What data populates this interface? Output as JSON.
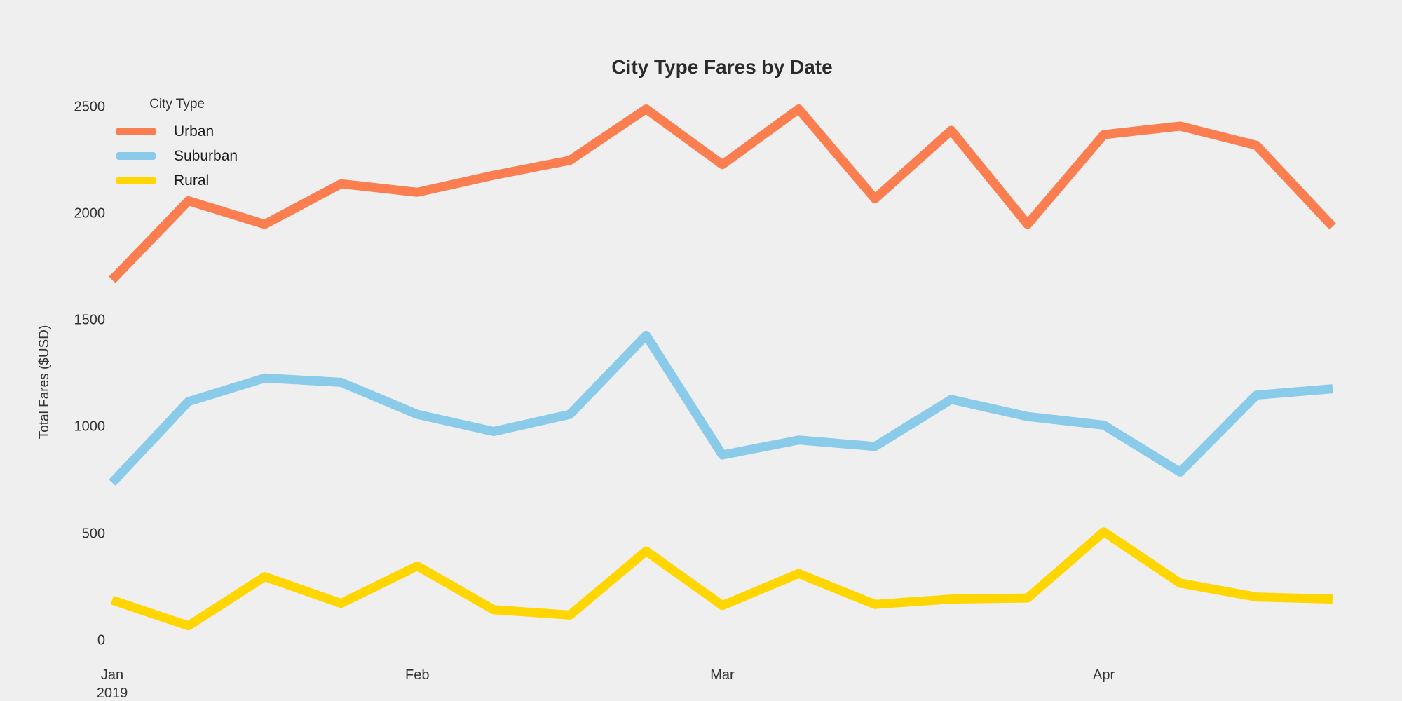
{
  "figure": {
    "background_color": "#EFEFEF",
    "text_color": "#333333"
  },
  "chart_data": {
    "type": "line",
    "title": "City Type Fares by Date",
    "xlabel": "",
    "ylabel": "Total Fares ($USD)",
    "legend_title": "City Type",
    "legend_position": "upper-left inside",
    "grid": false,
    "ylim": [
      0,
      2500
    ],
    "x_unit": "weekly dates, 2019",
    "x": [
      "2019-01-06",
      "2019-01-13",
      "2019-01-20",
      "2019-01-27",
      "2019-02-03",
      "2019-02-10",
      "2019-02-17",
      "2019-02-24",
      "2019-03-03",
      "2019-03-10",
      "2019-03-17",
      "2019-03-24",
      "2019-03-31",
      "2019-04-07",
      "2019-04-14",
      "2019-04-21",
      "2019-04-28"
    ],
    "series": [
      {
        "name": "Urban",
        "color": "#FA7E50",
        "values": [
          1690,
          2060,
          1950,
          2140,
          2100,
          2180,
          2250,
          2490,
          2230,
          2490,
          2070,
          2390,
          1950,
          2370,
          2410,
          2320,
          1940
        ]
      },
      {
        "name": "Suburban",
        "color": "#8ACBE9",
        "values": [
          740,
          1120,
          1230,
          1210,
          1060,
          980,
          1060,
          1430,
          870,
          940,
          910,
          1130,
          1050,
          1010,
          790,
          1150,
          1180
        ]
      },
      {
        "name": "Rural",
        "color": "#FFD600",
        "values": [
          190,
          70,
          300,
          175,
          350,
          145,
          120,
          420,
          165,
          315,
          170,
          195,
          200,
          510,
          270,
          205,
          195
        ]
      }
    ],
    "yticks": [
      {
        "label": "0",
        "value": 0
      },
      {
        "label": "500",
        "value": 500
      },
      {
        "label": "1000",
        "value": 1000
      },
      {
        "label": "1500",
        "value": 1500
      },
      {
        "label": "2000",
        "value": 2000
      },
      {
        "label": "2500",
        "value": 2500
      }
    ],
    "xticks": [
      {
        "label": "Jan",
        "sublabel": "2019",
        "week_index": 0
      },
      {
        "label": "Feb",
        "week_index": 4
      },
      {
        "label": "Mar",
        "week_index": 8
      },
      {
        "label": "Apr",
        "week_index": 13
      }
    ]
  }
}
